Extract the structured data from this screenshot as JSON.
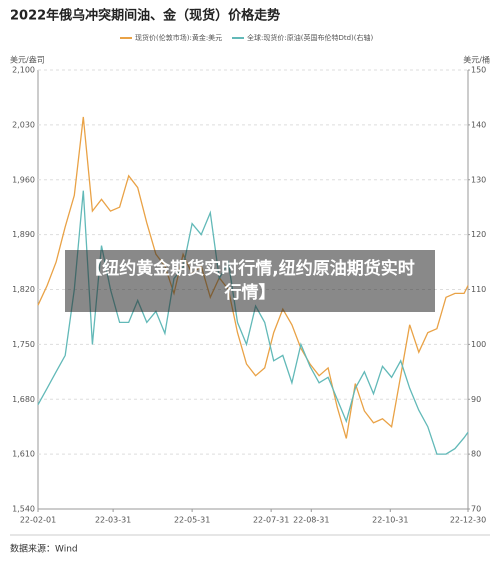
{
  "chart_data": {
    "type": "line",
    "title": "2022年俄乌冲突期间油、金（现货）价格走势",
    "ylabel": "美元/盎司",
    "y2label": "美元/桶",
    "source": "数据来源：Wind",
    "overlay": "【纽约黄金期货实时行情,纽约原油期货实时行情】",
    "x": [
      "22-02-01",
      "22-02-08",
      "22-02-15",
      "22-02-22",
      "22-03-01",
      "22-03-08",
      "22-03-15",
      "22-03-22",
      "22-03-29",
      "22-04-05",
      "22-04-12",
      "22-04-19",
      "22-04-26",
      "22-05-03",
      "22-05-10",
      "22-05-17",
      "22-05-24",
      "22-05-31",
      "22-06-07",
      "22-06-14",
      "22-06-21",
      "22-06-28",
      "22-07-05",
      "22-07-12",
      "22-07-19",
      "22-07-26",
      "22-08-02",
      "22-08-09",
      "22-08-16",
      "22-08-23",
      "22-08-30",
      "22-09-06",
      "22-09-13",
      "22-09-20",
      "22-09-27",
      "22-10-04",
      "22-10-11",
      "22-10-18",
      "22-10-25",
      "22-11-01",
      "22-11-08",
      "22-11-15",
      "22-11-22",
      "22-11-29",
      "22-12-06",
      "22-12-13",
      "22-12-20",
      "22-12-27",
      "22-12-30"
    ],
    "series": [
      {
        "name": "现货价(伦敦市场):黄金:美元",
        "color": "#e9a246",
        "values": [
          1800,
          1825,
          1855,
          1900,
          1940,
          2040,
          1920,
          1935,
          1920,
          1925,
          1965,
          1950,
          1905,
          1865,
          1850,
          1815,
          1865,
          1840,
          1850,
          1810,
          1835,
          1820,
          1765,
          1725,
          1710,
          1720,
          1765,
          1795,
          1775,
          1745,
          1725,
          1710,
          1720,
          1670,
          1630,
          1700,
          1665,
          1650,
          1655,
          1645,
          1710,
          1775,
          1740,
          1765,
          1770,
          1810,
          1815,
          1815,
          1825
        ]
      },
      {
        "name": "全球:现货价:原油(英国布伦特Dtd)(右轴)",
        "color": "#62b9b8",
        "axis": "y2",
        "values": [
          89,
          92,
          95,
          98,
          110,
          128,
          100,
          118,
          110,
          104,
          104,
          108,
          104,
          106,
          102,
          112,
          114,
          122,
          120,
          124,
          112,
          115,
          104,
          100,
          107,
          104,
          97,
          98,
          93,
          100,
          96,
          93,
          94,
          90,
          86,
          92,
          95,
          91,
          96,
          94,
          97,
          92,
          88,
          85,
          80,
          80,
          81,
          83,
          84
        ]
      }
    ],
    "xlim": [
      "22-02-01",
      "22-12-30"
    ],
    "xticks": [
      "22-02-01",
      "22-03-31",
      "22-05-31",
      "22-07-31",
      "22-08-31",
      "22-10-31",
      "22-12-30"
    ],
    "ylim": [
      1540,
      2100
    ],
    "yticks": [
      {
        "value": 1540,
        "label": "1,540"
      },
      {
        "value": 1610,
        "label": "1,610"
      },
      {
        "value": 1680,
        "label": "1,680"
      },
      {
        "value": 1750,
        "label": "1,750"
      },
      {
        "value": 1820,
        "label": "1,820"
      },
      {
        "value": 1890,
        "label": "1,890"
      },
      {
        "value": 1960,
        "label": "1,960"
      },
      {
        "value": 2030,
        "label": "2,030"
      },
      {
        "value": 2100,
        "label": "2,100"
      }
    ],
    "y2lim": [
      70,
      150
    ],
    "y2ticks": [
      70,
      80,
      90,
      100,
      110,
      120,
      130,
      140,
      150
    ],
    "grid": true
  }
}
